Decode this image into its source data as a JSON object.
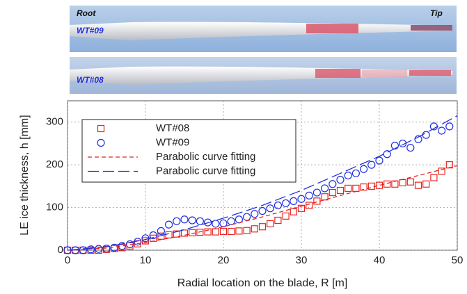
{
  "photos": {
    "root": "Root",
    "tip": "Tip",
    "blades": [
      "WT#09",
      "WT#08"
    ]
  },
  "chart_data": {
    "type": "line",
    "x_label": "Radial location on the blade, R [m]",
    "y_label": "LE ice thickness, h [mm]",
    "xlim": [
      0,
      50
    ],
    "xticks": [
      0,
      10,
      20,
      30,
      40,
      50
    ],
    "ylim": [
      0,
      350
    ],
    "yticks": [
      0,
      100,
      200,
      300
    ],
    "legend": "upper left",
    "series": [
      {
        "name": "WT#08",
        "color": "#e8231f",
        "marker": "square",
        "x": [
          0,
          1,
          2,
          3,
          4,
          5,
          6,
          7,
          8,
          9,
          10,
          11,
          12,
          13,
          14,
          15,
          16,
          17,
          18,
          19,
          20,
          21,
          22,
          23,
          24,
          25,
          26,
          27,
          28,
          29,
          30,
          31,
          32,
          33,
          34,
          35,
          36,
          37,
          38,
          39,
          40,
          41,
          42,
          43,
          44,
          45,
          46,
          47,
          48,
          49
        ],
        "values": [
          0,
          0,
          0,
          0,
          0,
          2,
          4,
          6,
          10,
          15,
          22,
          28,
          33,
          36,
          38,
          40,
          41,
          42,
          43,
          43,
          44,
          44,
          45,
          46,
          50,
          55,
          62,
          70,
          80,
          90,
          98,
          105,
          115,
          125,
          135,
          140,
          145,
          145,
          148,
          150,
          152,
          155,
          155,
          158,
          160,
          152,
          155,
          170,
          185,
          200
        ]
      },
      {
        "name": "WT#09",
        "color": "#1f2fe0",
        "marker": "circle",
        "x": [
          0,
          1,
          2,
          3,
          4,
          5,
          6,
          7,
          8,
          9,
          10,
          11,
          12,
          13,
          14,
          15,
          16,
          17,
          18,
          19,
          20,
          21,
          22,
          23,
          24,
          25,
          26,
          27,
          28,
          29,
          30,
          31,
          32,
          33,
          34,
          35,
          36,
          37,
          38,
          39,
          40,
          41,
          42,
          43,
          44,
          45,
          46,
          47,
          48,
          49
        ],
        "values": [
          0,
          0,
          0,
          2,
          3,
          4,
          6,
          10,
          14,
          20,
          28,
          35,
          45,
          60,
          68,
          72,
          70,
          68,
          65,
          62,
          63,
          68,
          72,
          78,
          85,
          92,
          98,
          105,
          110,
          115,
          120,
          128,
          135,
          145,
          155,
          165,
          175,
          180,
          190,
          200,
          210,
          225,
          245,
          250,
          240,
          260,
          270,
          290,
          280,
          290
        ]
      },
      {
        "name": "Parabolic curve fitting",
        "color": "#e8231f",
        "dash": "6,4",
        "x": [
          0,
          5,
          10,
          15,
          20,
          25,
          30,
          35,
          40,
          45,
          50
        ],
        "values": [
          0,
          5,
          18,
          35,
          55,
          78,
          103,
          128,
          152,
          175,
          198
        ]
      },
      {
        "name": "Parabolic curve fitting",
        "color": "#1f2fe0",
        "dash": "16,6",
        "x": [
          0,
          5,
          10,
          15,
          20,
          25,
          30,
          35,
          40,
          45,
          50
        ],
        "values": [
          0,
          8,
          25,
          48,
          75,
          105,
          140,
          180,
          220,
          265,
          315
        ]
      }
    ]
  }
}
